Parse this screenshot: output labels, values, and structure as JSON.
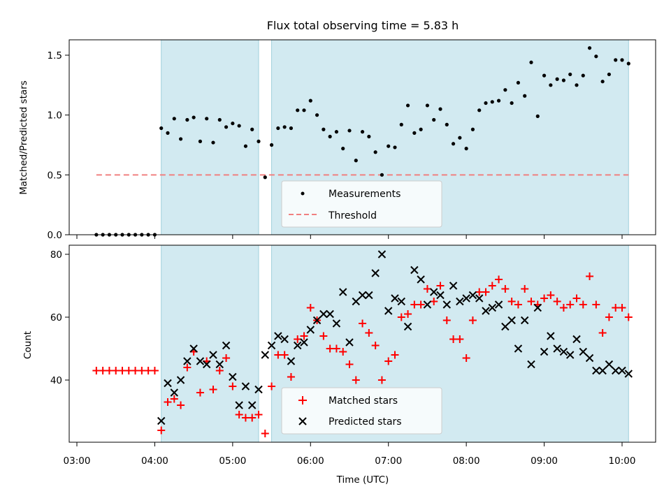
{
  "figure": {
    "title": "Flux total observing time = 5.83 h",
    "xlabel": "Time (UTC)",
    "xticks": [
      "03:00",
      "04:00",
      "05:00",
      "06:00",
      "07:00",
      "08:00",
      "09:00",
      "10:00"
    ],
    "shaded_intervals": [
      [
        "04:05",
        "05:20"
      ],
      [
        "05:30",
        "10:05"
      ]
    ],
    "shade_color": "#add8e6"
  },
  "chart_data": [
    {
      "type": "scatter",
      "ylabel": "Matched/Predicted stars",
      "ylim": [
        0,
        1.65
      ],
      "yticks": [
        "0.0",
        "0.5",
        "1.0",
        "1.5"
      ],
      "legend_position": "lower-center",
      "series": [
        {
          "name": "Measurements",
          "color": "#000000",
          "marker": "dot",
          "x": [
            "03:15",
            "03:20",
            "03:25",
            "03:30",
            "03:35",
            "03:40",
            "03:45",
            "03:50",
            "03:55",
            "04:00",
            "04:05",
            "04:10",
            "04:15",
            "04:20",
            "04:25",
            "04:30",
            "04:35",
            "04:40",
            "04:45",
            "04:50",
            "04:55",
            "05:00",
            "05:05",
            "05:10",
            "05:15",
            "05:20",
            "05:25",
            "05:30",
            "05:35",
            "05:40",
            "05:45",
            "05:50",
            "05:55",
            "06:00",
            "06:05",
            "06:10",
            "06:15",
            "06:20",
            "06:25",
            "06:30",
            "06:35",
            "06:40",
            "06:45",
            "06:50",
            "06:55",
            "07:00",
            "07:05",
            "07:10",
            "07:15",
            "07:20",
            "07:25",
            "07:30",
            "07:35",
            "07:40",
            "07:45",
            "07:50",
            "07:55",
            "08:00",
            "08:05",
            "08:10",
            "08:15",
            "08:20",
            "08:25",
            "08:30",
            "08:35",
            "08:40",
            "08:45",
            "08:50",
            "08:55",
            "09:00",
            "09:05",
            "09:10",
            "09:15",
            "09:20",
            "09:25",
            "09:30",
            "09:35",
            "09:40",
            "09:45",
            "09:50",
            "09:55",
            "10:00",
            "10:05"
          ],
          "values": [
            0,
            0,
            0,
            0,
            0,
            0,
            0,
            0,
            0,
            0,
            0.89,
            0.85,
            0.97,
            0.8,
            0.96,
            0.98,
            0.78,
            0.97,
            0.77,
            0.96,
            0.9,
            0.93,
            0.91,
            0.74,
            0.88,
            0.78,
            0.48,
            0.75,
            0.89,
            0.9,
            0.89,
            1.04,
            1.04,
            1.12,
            1.0,
            0.88,
            0.82,
            0.86,
            0.72,
            0.87,
            0.62,
            0.86,
            0.82,
            0.69,
            0.5,
            0.74,
            0.73,
            0.92,
            1.08,
            0.85,
            0.88,
            1.08,
            0.96,
            1.05,
            0.92,
            0.76,
            0.81,
            0.72,
            0.88,
            1.04,
            1.1,
            1.11,
            1.12,
            1.21,
            1.1,
            1.27,
            1.16,
            1.44,
            0.99,
            1.33,
            1.25,
            1.3,
            1.29,
            1.34,
            1.25,
            1.33,
            1.56,
            1.49,
            1.28,
            1.34,
            1.46,
            1.46,
            1.43
          ]
        },
        {
          "name": "Threshold",
          "color": "#f08080",
          "style": "dashed",
          "x": [
            "03:15",
            "10:05"
          ],
          "values": [
            0.5,
            0.5
          ]
        }
      ]
    },
    {
      "type": "scatter",
      "ylabel": "Count",
      "ylim": [
        21,
        83
      ],
      "yticks": [
        "40",
        "60",
        "80"
      ],
      "legend_position": "lower-center",
      "series": [
        {
          "name": "Matched stars",
          "color": "#ff0000",
          "marker": "plus",
          "x": [
            "03:15",
            "03:20",
            "03:25",
            "03:30",
            "03:35",
            "03:40",
            "03:45",
            "03:50",
            "03:55",
            "04:00",
            "04:05",
            "04:10",
            "04:15",
            "04:20",
            "04:25",
            "04:30",
            "04:35",
            "04:40",
            "04:45",
            "04:50",
            "04:55",
            "05:00",
            "05:05",
            "05:10",
            "05:15",
            "05:20",
            "05:25",
            "05:30",
            "05:35",
            "05:40",
            "05:45",
            "05:50",
            "05:55",
            "06:00",
            "06:05",
            "06:10",
            "06:15",
            "06:20",
            "06:25",
            "06:30",
            "06:35",
            "06:40",
            "06:45",
            "06:50",
            "06:55",
            "07:00",
            "07:05",
            "07:10",
            "07:15",
            "07:20",
            "07:25",
            "07:30",
            "07:35",
            "07:40",
            "07:45",
            "07:50",
            "07:55",
            "08:00",
            "08:05",
            "08:10",
            "08:15",
            "08:20",
            "08:25",
            "08:30",
            "08:35",
            "08:40",
            "08:45",
            "08:50",
            "08:55",
            "09:00",
            "09:05",
            "09:10",
            "09:15",
            "09:20",
            "09:25",
            "09:30",
            "09:35",
            "09:40",
            "09:45",
            "09:50",
            "09:55",
            "10:00",
            "10:05"
          ],
          "values": [
            43,
            43,
            43,
            43,
            43,
            43,
            43,
            43,
            43,
            43,
            24,
            33,
            34,
            32,
            44,
            49,
            36,
            46,
            37,
            43,
            47,
            38,
            29,
            28,
            28,
            29,
            23,
            38,
            48,
            48,
            41,
            53,
            54,
            63,
            59,
            54,
            50,
            50,
            49,
            45,
            40,
            58,
            55,
            51,
            40,
            46,
            48,
            60,
            61,
            64,
            64,
            69,
            65,
            70,
            59,
            53,
            53,
            47,
            59,
            68,
            68,
            70,
            72,
            69,
            65,
            64,
            69,
            65,
            64,
            66,
            67,
            65,
            63,
            64,
            66,
            64,
            73,
            64,
            55,
            60,
            63,
            63,
            60
          ]
        },
        {
          "name": "Predicted stars",
          "color": "#000000",
          "marker": "x",
          "x": [
            "04:05",
            "04:10",
            "04:15",
            "04:20",
            "04:25",
            "04:30",
            "04:35",
            "04:40",
            "04:45",
            "04:50",
            "04:55",
            "05:00",
            "05:05",
            "05:10",
            "05:15",
            "05:20",
            "05:25",
            "05:30",
            "05:35",
            "05:40",
            "05:45",
            "05:50",
            "05:55",
            "06:00",
            "06:05",
            "06:10",
            "06:15",
            "06:20",
            "06:25",
            "06:30",
            "06:35",
            "06:40",
            "06:45",
            "06:50",
            "06:55",
            "07:00",
            "07:05",
            "07:10",
            "07:15",
            "07:20",
            "07:25",
            "07:30",
            "07:35",
            "07:40",
            "07:45",
            "07:50",
            "07:55",
            "08:00",
            "08:05",
            "08:10",
            "08:15",
            "08:20",
            "08:25",
            "08:30",
            "08:35",
            "08:40",
            "08:45",
            "08:50",
            "08:55",
            "09:00",
            "09:05",
            "09:10",
            "09:15",
            "09:20",
            "09:25",
            "09:30",
            "09:35",
            "09:40",
            "09:45",
            "09:50",
            "09:55",
            "10:00",
            "10:05"
          ],
          "values": [
            27,
            39,
            36,
            40,
            46,
            50,
            46,
            45,
            48,
            45,
            51,
            41,
            32,
            38,
            32,
            37,
            48,
            51,
            54,
            53,
            46,
            51,
            52,
            56,
            59,
            61,
            61,
            58,
            68,
            52,
            65,
            67,
            67,
            74,
            80,
            62,
            66,
            65,
            57,
            75,
            72,
            64,
            68,
            67,
            64,
            70,
            65,
            66,
            67,
            66,
            62,
            63,
            64,
            57,
            59,
            50,
            59,
            45,
            63,
            49,
            54,
            50,
            49,
            48,
            53,
            49,
            47,
            43,
            43,
            45,
            43,
            43,
            42
          ]
        }
      ]
    }
  ]
}
